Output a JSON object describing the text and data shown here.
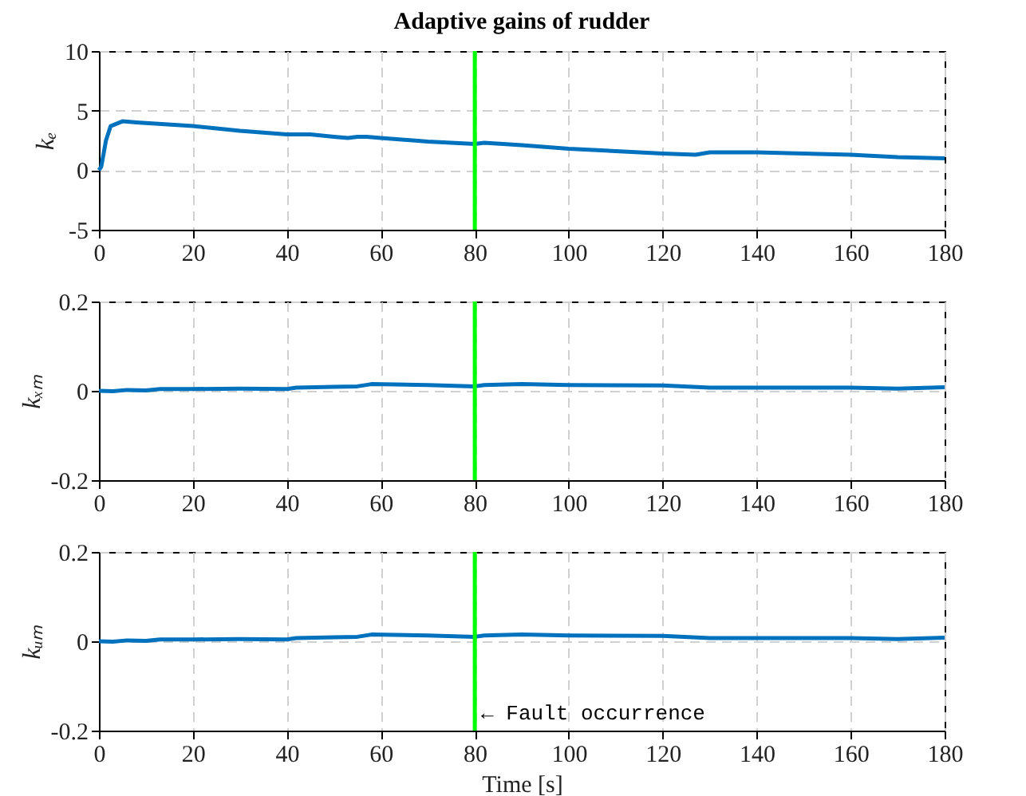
{
  "chart_data": [
    {
      "type": "line",
      "title": "Adaptive gains of rudder",
      "ylabel": "kₑ",
      "xlim": [
        0,
        180
      ],
      "xticks": [
        0,
        20,
        40,
        60,
        80,
        100,
        120,
        140,
        160,
        180
      ],
      "ylim": [
        -5,
        10
      ],
      "yticks": [
        -5,
        0,
        5,
        10
      ],
      "grid": true,
      "line_style": "solid",
      "marker": "none",
      "series": [
        {
          "color": "#0072bd",
          "x": [
            0,
            0.5,
            1.5,
            2.5,
            5,
            8,
            12,
            20,
            25,
            30,
            40,
            45,
            50,
            53,
            55,
            57,
            60,
            70,
            80,
            82,
            90,
            100,
            110,
            120,
            127,
            130,
            140,
            150,
            160,
            170,
            180
          ],
          "values": [
            0,
            0.3,
            2.5,
            3.7,
            4.1,
            4.0,
            3.9,
            3.7,
            3.5,
            3.3,
            3.0,
            3.0,
            2.8,
            2.7,
            2.8,
            2.8,
            2.7,
            2.4,
            2.2,
            2.3,
            2.1,
            1.8,
            1.6,
            1.4,
            1.3,
            1.5,
            1.5,
            1.4,
            1.3,
            1.1,
            1.0
          ]
        }
      ],
      "ref_lines": [
        {
          "axis": "x",
          "value": 80,
          "color": "#00ff00"
        }
      ]
    },
    {
      "type": "line",
      "ylabel": "kₓₘ",
      "xlim": [
        0,
        180
      ],
      "xticks": [
        0,
        20,
        40,
        60,
        80,
        100,
        120,
        140,
        160,
        180
      ],
      "ylim": [
        -0.2,
        0.2
      ],
      "yticks": [
        -0.2,
        0,
        0.2
      ],
      "grid": true,
      "line_style": "solid",
      "marker": "none",
      "series": [
        {
          "color": "#0072bd",
          "x": [
            0,
            3,
            6,
            10,
            13,
            20,
            30,
            40,
            42,
            50,
            55,
            58,
            70,
            80,
            82,
            90,
            100,
            120,
            130,
            140,
            160,
            170,
            180
          ],
          "values": [
            0,
            -0.001,
            0.002,
            0.001,
            0.004,
            0.004,
            0.005,
            0.004,
            0.007,
            0.009,
            0.01,
            0.015,
            0.013,
            0.01,
            0.013,
            0.015,
            0.013,
            0.012,
            0.007,
            0.007,
            0.007,
            0.005,
            0.008
          ]
        }
      ],
      "ref_lines": [
        {
          "axis": "x",
          "value": 80,
          "color": "#00ff00"
        }
      ]
    },
    {
      "type": "line",
      "ylabel": "kᵤₘ",
      "xlabel": "Time [s]",
      "xlim": [
        0,
        180
      ],
      "xticks": [
        0,
        20,
        40,
        60,
        80,
        100,
        120,
        140,
        160,
        180
      ],
      "ylim": [
        -0.2,
        0.2
      ],
      "yticks": [
        -0.2,
        0,
        0.2
      ],
      "grid": true,
      "line_style": "solid",
      "marker": "none",
      "series": [
        {
          "color": "#0072bd",
          "x": [
            0,
            3,
            6,
            10,
            13,
            20,
            30,
            40,
            42,
            50,
            55,
            58,
            70,
            80,
            82,
            90,
            100,
            120,
            130,
            140,
            160,
            170,
            180
          ],
          "values": [
            0,
            -0.001,
            0.002,
            0.001,
            0.004,
            0.004,
            0.005,
            0.004,
            0.007,
            0.009,
            0.01,
            0.015,
            0.013,
            0.01,
            0.013,
            0.015,
            0.013,
            0.012,
            0.007,
            0.007,
            0.007,
            0.005,
            0.008
          ]
        }
      ],
      "ref_lines": [
        {
          "axis": "x",
          "value": 80,
          "color": "#00ff00"
        }
      ],
      "annotations": [
        {
          "text": "← Fault occurrence",
          "x": 80,
          "y": -0.16
        }
      ]
    }
  ]
}
